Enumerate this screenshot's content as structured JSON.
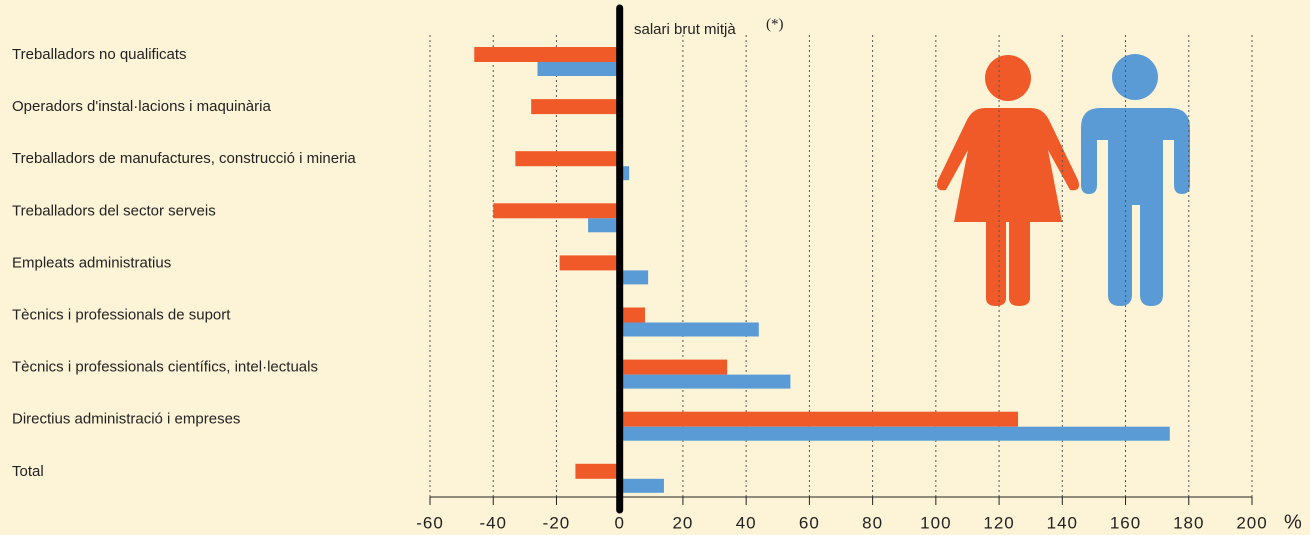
{
  "chart_data": {
    "type": "bar",
    "orientation": "horizontal",
    "annotation": "salari brut mitjà",
    "annotation_note": "(*)",
    "x_unit": "%",
    "categories": [
      "Treballadors no qualificats",
      "Operadors d'instal·lacions i maquinària",
      "Treballadors de manufactures, construcció i mineria",
      "Treballadors del sector serveis",
      "Empleats administratius",
      "Tècnics i professionals de suport",
      "Tècnics i professionals científics, intel·lectuals",
      "Directius administració i empreses",
      "Total"
    ],
    "series": [
      {
        "color": "#f05a28",
        "values": [
          -46,
          -28,
          -33,
          -40,
          -19,
          8,
          34,
          126,
          -14
        ]
      },
      {
        "color": "#5b9bd5",
        "values": [
          -26,
          0,
          3,
          -10,
          9,
          44,
          54,
          174,
          14
        ]
      }
    ],
    "xlim": [
      -60,
      200
    ],
    "xticks": [
      -60,
      -40,
      -20,
      0,
      20,
      40,
      60,
      80,
      100,
      120,
      140,
      160,
      180,
      200
    ],
    "grid": true
  }
}
